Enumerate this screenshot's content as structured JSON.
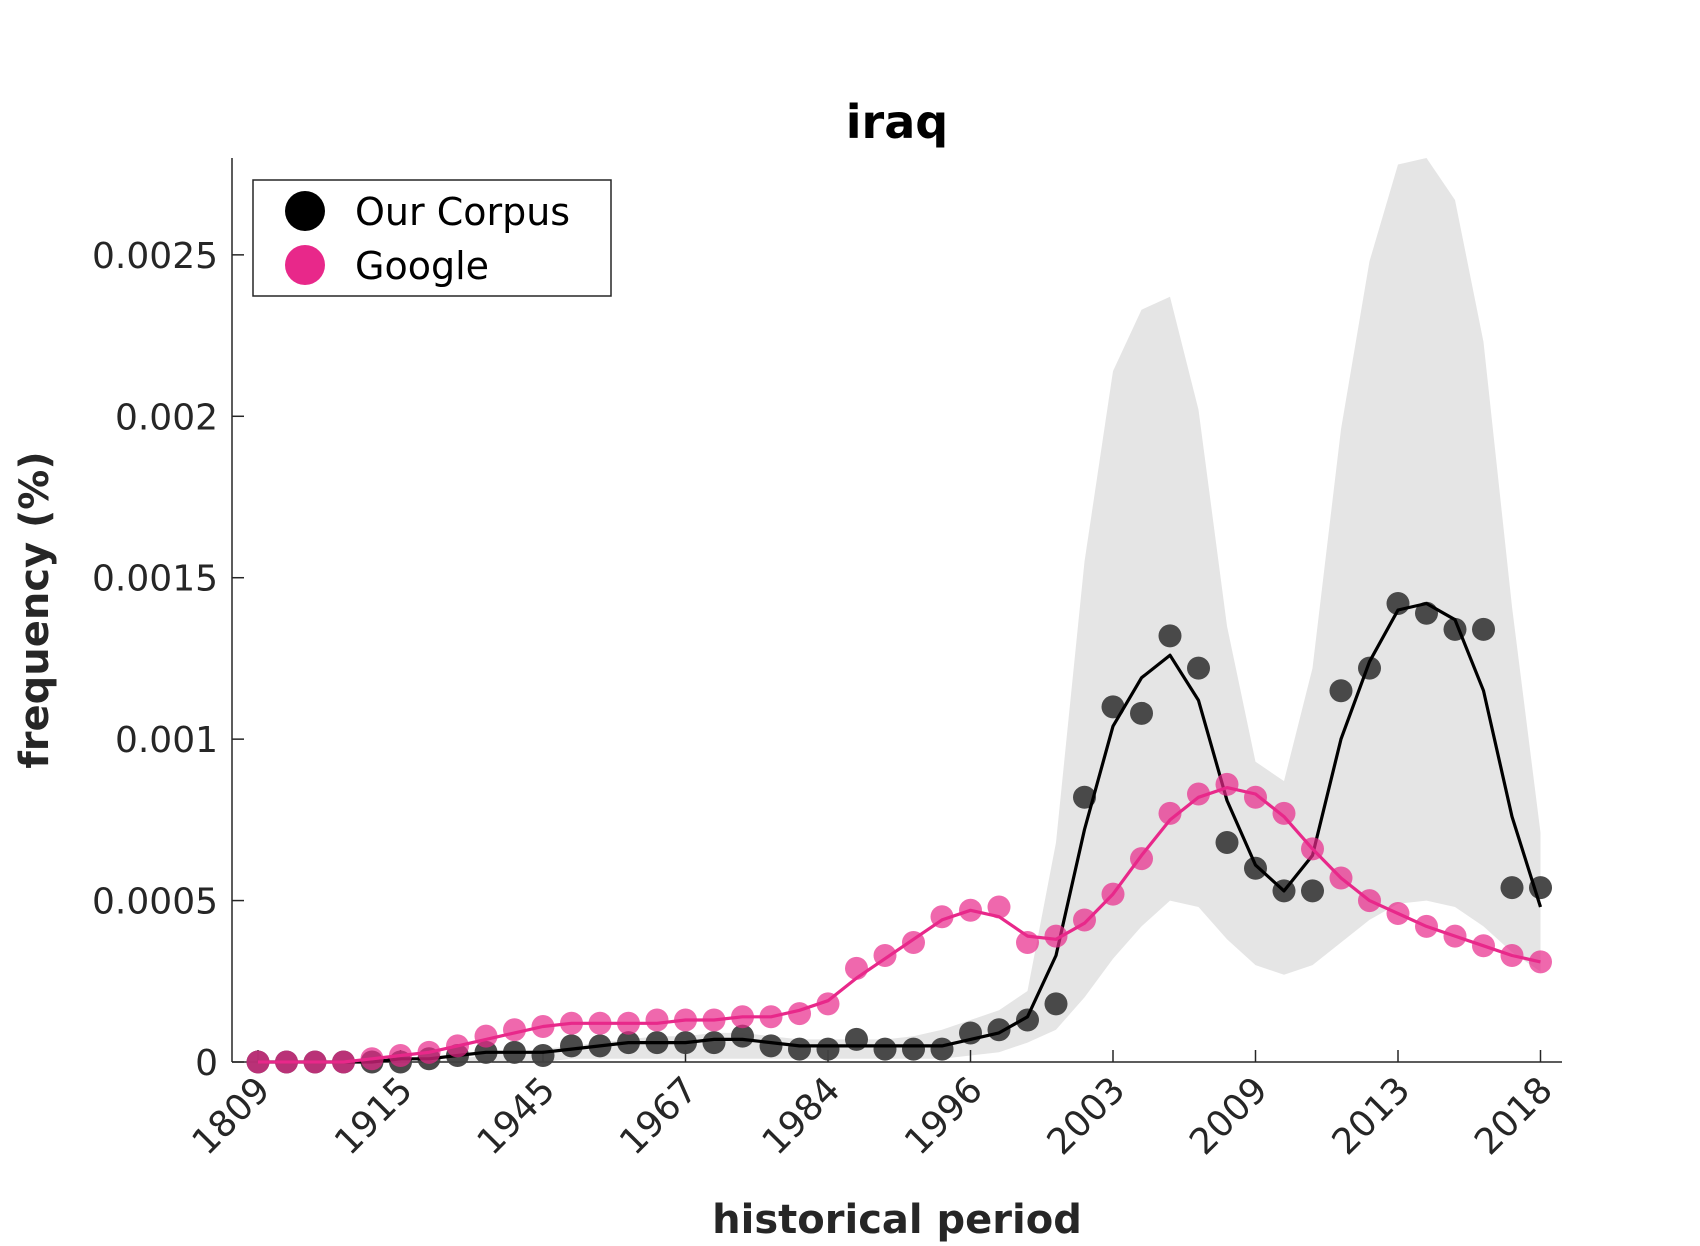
{
  "chart_data": {
    "type": "scatter",
    "title": "iraq",
    "xlabel": "historical period",
    "ylabel": "frequency (%)",
    "x_tick_labels": [
      "1809",
      "1915",
      "1945",
      "1967",
      "1984",
      "1996",
      "2003",
      "2009",
      "2013",
      "2018"
    ],
    "x_tick_index": [
      0,
      5,
      10,
      15,
      20,
      25,
      30,
      35,
      40,
      45
    ],
    "y_ticks": [
      0,
      0.0005,
      0.001,
      0.0015,
      0.002,
      0.0025
    ],
    "y_tick_labels": [
      "0",
      "0.0005",
      "0.001",
      "0.0015",
      "0.002",
      "0.0025"
    ],
    "ylim": [
      0,
      0.0028
    ],
    "legend": {
      "position": "top-left"
    },
    "series": [
      {
        "name": "Our Corpus",
        "color": "#000000",
        "marker_color": "#404040",
        "points": [
          0,
          0,
          0,
          0,
          0,
          0,
          1e-05,
          2e-05,
          3e-05,
          3e-05,
          2e-05,
          5e-05,
          5e-05,
          6e-05,
          6e-05,
          6e-05,
          6e-05,
          8e-05,
          5e-05,
          4e-05,
          4e-05,
          7e-05,
          4e-05,
          4e-05,
          4e-05,
          9e-05,
          0.0001,
          0.00013,
          0.00018,
          0.00082,
          0.0011,
          0.00108,
          0.00132,
          0.00122,
          0.00068,
          0.0006,
          0.00053,
          0.00053,
          0.00115,
          0.00122,
          0.00142,
          0.00139,
          0.00134,
          0.00134,
          0.00054,
          0.00054
        ],
        "smooth": [
          0,
          0,
          0,
          0,
          0,
          1e-05,
          1e-05,
          2e-05,
          3e-05,
          3e-05,
          3e-05,
          4e-05,
          5e-05,
          6e-05,
          6e-05,
          6e-05,
          7e-05,
          7e-05,
          6e-05,
          5e-05,
          5e-05,
          5e-05,
          5e-05,
          5e-05,
          5e-05,
          7e-05,
          9e-05,
          0.00014,
          0.00033,
          0.00072,
          0.00104,
          0.00119,
          0.00126,
          0.00112,
          0.00081,
          0.00061,
          0.00053,
          0.00064,
          0.001,
          0.00124,
          0.0014,
          0.00142,
          0.00137,
          0.00115,
          0.00076,
          0.00048
        ]
      },
      {
        "name": "Google",
        "color": "#e8288a",
        "points": [
          0,
          0,
          0,
          0,
          1e-05,
          2e-05,
          3e-05,
          5e-05,
          8e-05,
          0.0001,
          0.00011,
          0.00012,
          0.00012,
          0.00012,
          0.00013,
          0.00013,
          0.00013,
          0.00014,
          0.00014,
          0.00015,
          0.00018,
          0.00029,
          0.00033,
          0.00037,
          0.00045,
          0.00047,
          0.00048,
          0.00037,
          0.00039,
          0.00044,
          0.00052,
          0.00063,
          0.00077,
          0.00083,
          0.00086,
          0.00082,
          0.00077,
          0.00066,
          0.00057,
          0.0005,
          0.00046,
          0.00042,
          0.00039,
          0.00036,
          0.00033,
          0.00031
        ],
        "smooth": [
          0,
          0,
          0,
          0,
          1e-05,
          2e-05,
          3e-05,
          5e-05,
          7e-05,
          9e-05,
          0.00011,
          0.00012,
          0.00012,
          0.00012,
          0.00012,
          0.00013,
          0.00013,
          0.00014,
          0.00014,
          0.00016,
          0.00019,
          0.00026,
          0.00032,
          0.00038,
          0.00044,
          0.00047,
          0.00045,
          0.00039,
          0.00038,
          0.00043,
          0.00052,
          0.00064,
          0.00075,
          0.00082,
          0.00085,
          0.00083,
          0.00076,
          0.00066,
          0.00057,
          0.0005,
          0.00046,
          0.00042,
          0.00039,
          0.00036,
          0.00033,
          0.00031
        ]
      }
    ],
    "confidence_band": {
      "color": "#e5e5e5",
      "upper": [
        0,
        0,
        0,
        0,
        0,
        0,
        0,
        1e-05,
        2e-05,
        3e-05,
        4e-05,
        5e-05,
        6e-05,
        7e-05,
        8e-05,
        8e-05,
        9e-05,
        9e-05,
        8e-05,
        7e-05,
        7e-05,
        7e-05,
        7e-05,
        8e-05,
        0.0001,
        0.00013,
        0.00016,
        0.00022,
        0.00068,
        0.00155,
        0.00214,
        0.00233,
        0.00237,
        0.00202,
        0.00135,
        0.00093,
        0.00087,
        0.00122,
        0.00196,
        0.00248,
        0.00278,
        0.0028,
        0.00267,
        0.00223,
        0.00141,
        0.00071
      ],
      "lower": [
        0,
        0,
        0,
        0,
        0,
        0,
        0,
        0,
        0,
        0,
        0,
        1e-05,
        1e-05,
        1e-05,
        1e-05,
        1e-05,
        1e-05,
        1e-05,
        1e-05,
        1e-05,
        1e-05,
        1e-05,
        1e-05,
        1e-05,
        1e-05,
        2e-05,
        3e-05,
        6e-05,
        0.0001,
        0.0002,
        0.00032,
        0.00042,
        0.0005,
        0.00048,
        0.00038,
        0.0003,
        0.00027,
        0.0003,
        0.00037,
        0.00044,
        0.00049,
        0.0005,
        0.00048,
        0.00042,
        0.00034,
        0.00028
      ]
    }
  }
}
